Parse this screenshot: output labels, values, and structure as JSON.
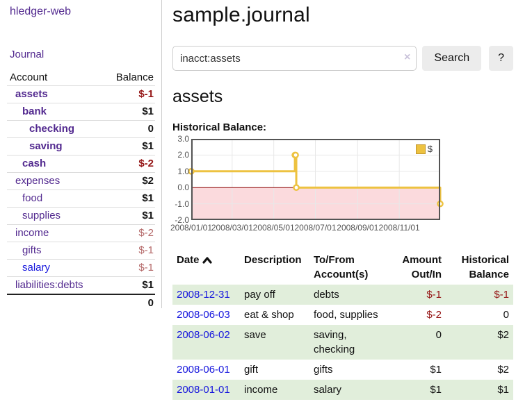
{
  "app": {
    "brand": "hledger-web"
  },
  "sidebar": {
    "journal_link": "Journal",
    "accounts": {
      "header_account": "Account",
      "header_balance": "Balance",
      "rows": [
        {
          "name": "assets",
          "depth": 1,
          "emph": true,
          "blue": false,
          "balance": "$-1",
          "balance_class": "neg-strong"
        },
        {
          "name": "bank",
          "depth": 2,
          "emph": true,
          "blue": false,
          "balance": "$1",
          "balance_class": "pos"
        },
        {
          "name": "checking",
          "depth": 3,
          "emph": true,
          "blue": false,
          "balance": "0",
          "balance_class": "pos"
        },
        {
          "name": "saving",
          "depth": 3,
          "emph": true,
          "blue": false,
          "balance": "$1",
          "balance_class": "pos"
        },
        {
          "name": "cash",
          "depth": 2,
          "emph": true,
          "blue": false,
          "balance": "$-2",
          "balance_class": "neg-strong"
        },
        {
          "name": "expenses",
          "depth": 1,
          "emph": false,
          "blue": false,
          "balance": "$2",
          "balance_class": "pos"
        },
        {
          "name": "food",
          "depth": 2,
          "emph": false,
          "blue": false,
          "balance": "$1",
          "balance_class": "pos"
        },
        {
          "name": "supplies",
          "depth": 2,
          "emph": false,
          "blue": false,
          "balance": "$1",
          "balance_class": "pos"
        },
        {
          "name": "income",
          "depth": 1,
          "emph": false,
          "blue": false,
          "balance": "$-2",
          "balance_class": "neg-soft"
        },
        {
          "name": "gifts",
          "depth": 2,
          "emph": false,
          "blue": false,
          "balance": "$-1",
          "balance_class": "neg-soft"
        },
        {
          "name": "salary",
          "depth": 2,
          "emph": false,
          "blue": true,
          "balance": "$-1",
          "balance_class": "neg-soft"
        },
        {
          "name": "liabilities:debts",
          "depth": 1,
          "emph": false,
          "blue": false,
          "balance": "$1",
          "balance_class": "pos"
        }
      ],
      "total": "0"
    }
  },
  "main": {
    "title": "sample.journal",
    "search": {
      "value": "inacct:assets",
      "clear_icon": "×",
      "button_label": "Search",
      "help_label": "?"
    },
    "account_heading": "assets"
  },
  "chart_data": {
    "type": "line",
    "step": true,
    "title": "Historical Balance:",
    "xlim": [
      "2008-01-01",
      "2008-12-31"
    ],
    "ylim": [
      -2,
      3
    ],
    "y_ticks": [
      3.0,
      2.0,
      1.0,
      0.0,
      -1.0,
      -2.0
    ],
    "x_ticks": [
      {
        "date": "2008-01-01",
        "label": "2008/01/01"
      },
      {
        "date": "2008-03-01",
        "label": "2008/03/01"
      },
      {
        "date": "2008-05-01",
        "label": "2008/05/01"
      },
      {
        "date": "2008-07-01",
        "label": "2008/07/01"
      },
      {
        "date": "2008-09-01",
        "label": "2008/09/01"
      },
      {
        "date": "2008-11-01",
        "label": "2008/11/01"
      }
    ],
    "series": [
      {
        "name": "$",
        "color": "#edc240",
        "points": [
          {
            "date": "2008-01-01",
            "value": 1
          },
          {
            "date": "2008-06-01",
            "value": 2
          },
          {
            "date": "2008-06-02",
            "value": 2
          },
          {
            "date": "2008-06-03",
            "value": 0
          },
          {
            "date": "2008-12-31",
            "value": -1
          }
        ]
      }
    ],
    "colors": {
      "below_zero_fill": "#fbdadd",
      "zero_line": "#8b0000",
      "grid": "#e8e8e8",
      "border": "#545454"
    },
    "legend_position": "top-right",
    "grid": true
  },
  "transactions": {
    "headers": {
      "date": "Date",
      "sort_icon": "chevron-up",
      "description": "Description",
      "account_line1": "To/From",
      "account_line2": "Account(s)",
      "amount_line1": "Amount",
      "amount_line2": "Out/In",
      "balance_line1": "Historical",
      "balance_line2": "Balance"
    },
    "rows": [
      {
        "date": "2008-12-31",
        "description": "pay off",
        "accounts": "debts",
        "amount": "$-1",
        "amount_class": "neg",
        "balance": "$-1",
        "balance_class": "neg",
        "striped": true
      },
      {
        "date": "2008-06-03",
        "description": "eat & shop",
        "accounts": "food, supplies",
        "amount": "$-2",
        "amount_class": "neg",
        "balance": "0",
        "balance_class": "pos",
        "striped": false
      },
      {
        "date": "2008-06-02",
        "description": "save",
        "accounts": "saving, checking",
        "amount": "0",
        "amount_class": "pos",
        "balance": "$2",
        "balance_class": "pos",
        "striped": true
      },
      {
        "date": "2008-06-01",
        "description": "gift",
        "accounts": "gifts",
        "amount": "$1",
        "amount_class": "pos",
        "balance": "$2",
        "balance_class": "pos",
        "striped": false
      },
      {
        "date": "2008-01-01",
        "description": "income",
        "accounts": "salary",
        "amount": "$1",
        "amount_class": "pos",
        "balance": "$1",
        "balance_class": "pos",
        "striped": true
      }
    ]
  },
  "colors": {
    "link_purple": "#52298f",
    "link_blue": "#1515dd",
    "negative_strong": "#941414",
    "negative_soft": "#b56a6a",
    "row_stripe_green": "#e1eedb",
    "chart_line_gold": "#edc240"
  }
}
